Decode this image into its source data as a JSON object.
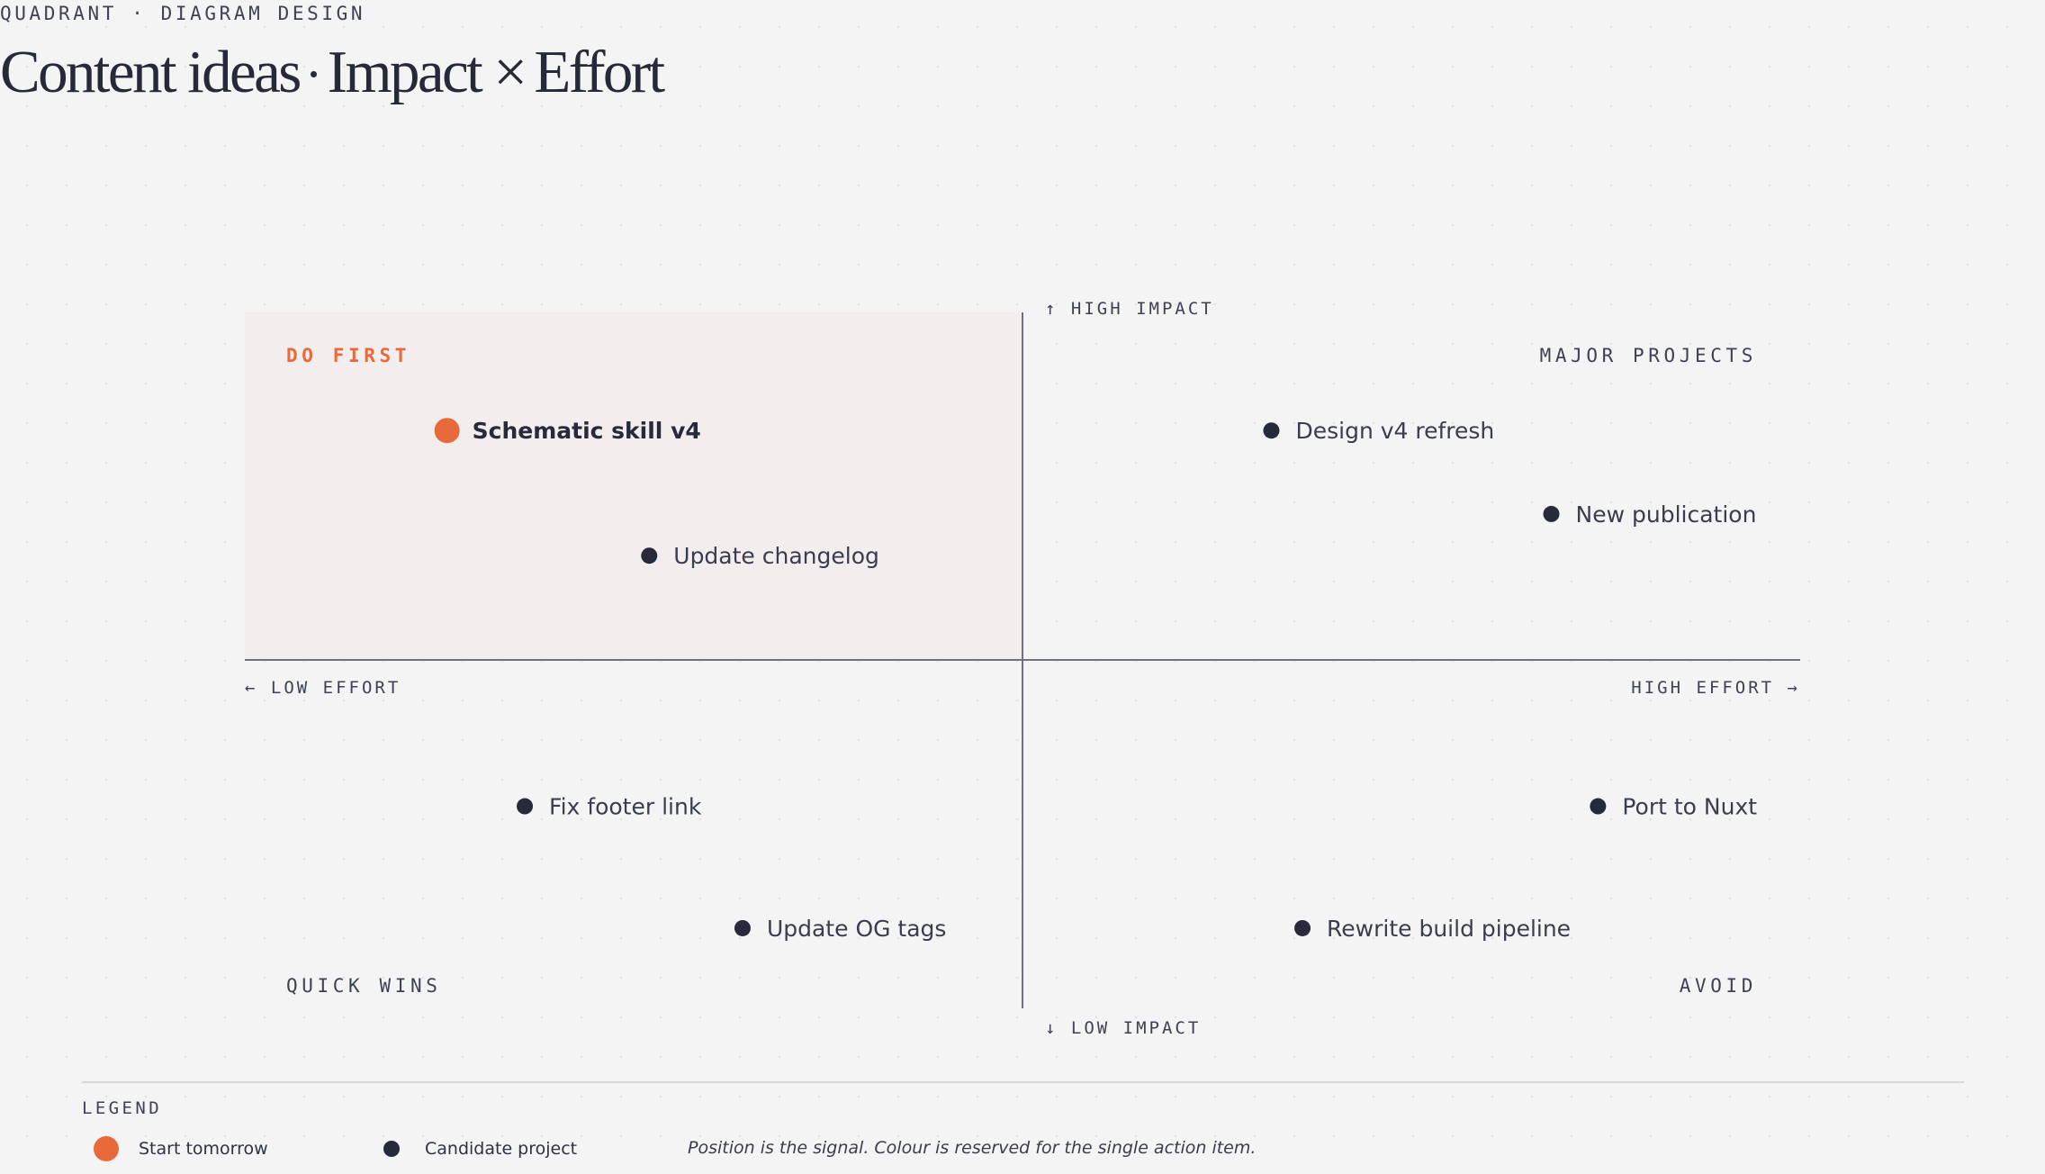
{
  "header": {
    "eyebrow": "QUADRANT · DIAGRAM DESIGN",
    "title_part_1": "Content ideas",
    "title_part_2": "Impact",
    "title_times": "×",
    "title_part_3": "Effort"
  },
  "colors": {
    "accent": "#e8693a",
    "ink": "#262a3b",
    "axis": "#6e7180",
    "label": "#3e4254",
    "highlight_fill": "#f3eeed"
  },
  "axes": {
    "y_top_label": "↑ HIGH IMPACT",
    "y_bottom_label": "↓ LOW IMPACT",
    "x_left_label": "← LOW EFFORT",
    "x_right_label": "HIGH EFFORT →"
  },
  "quadrants": {
    "top_left": "DO FIRST",
    "top_right": "MAJOR PROJECTS",
    "bottom_left": "QUICK WINS",
    "bottom_right": "AVOID"
  },
  "items": [
    {
      "label": "Schematic skill v4",
      "effort": 0.13,
      "impact": 0.66,
      "highlight": true
    },
    {
      "label": "Update changelog",
      "effort": 0.26,
      "impact": 0.3,
      "highlight": false
    },
    {
      "label": "Design v4 refresh",
      "effort": 0.66,
      "impact": 0.66,
      "highlight": false
    },
    {
      "label": "New publication",
      "effort": 0.84,
      "impact": 0.42,
      "highlight": false
    },
    {
      "label": "Fix footer link",
      "effort": 0.18,
      "impact": -0.42,
      "highlight": false
    },
    {
      "label": "Update OG tags",
      "effort": 0.32,
      "impact": -0.77,
      "highlight": false
    },
    {
      "label": "Port to Nuxt",
      "effort": 0.87,
      "impact": -0.42,
      "highlight": false
    },
    {
      "label": "Rewrite build pipeline",
      "effort": 0.68,
      "impact": -0.77,
      "highlight": false
    }
  ],
  "legend": {
    "title": "LEGEND",
    "highlight_label": "Start tomorrow",
    "normal_label": "Candidate project",
    "note": "Position is the signal. Colour is reserved for the single action item."
  }
}
